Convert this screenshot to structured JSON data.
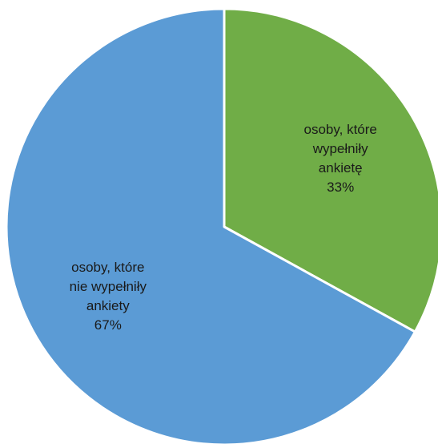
{
  "chart_data": {
    "type": "pie",
    "title": "",
    "slices": [
      {
        "label_lines": [
          "osoby, które",
          "wypełniły",
          "ankietę"
        ],
        "percent_label": "33%",
        "value": 33,
        "color": "#70ad47"
      },
      {
        "label_lines": [
          "osoby, które",
          "nie wypełniły",
          "ankiety"
        ],
        "percent_label": "67%",
        "value": 67,
        "color": "#5b9bd5"
      }
    ],
    "start_angle_deg": 0,
    "direction": "clockwise",
    "slice_border_color": "#ffffff",
    "legend": "none"
  }
}
